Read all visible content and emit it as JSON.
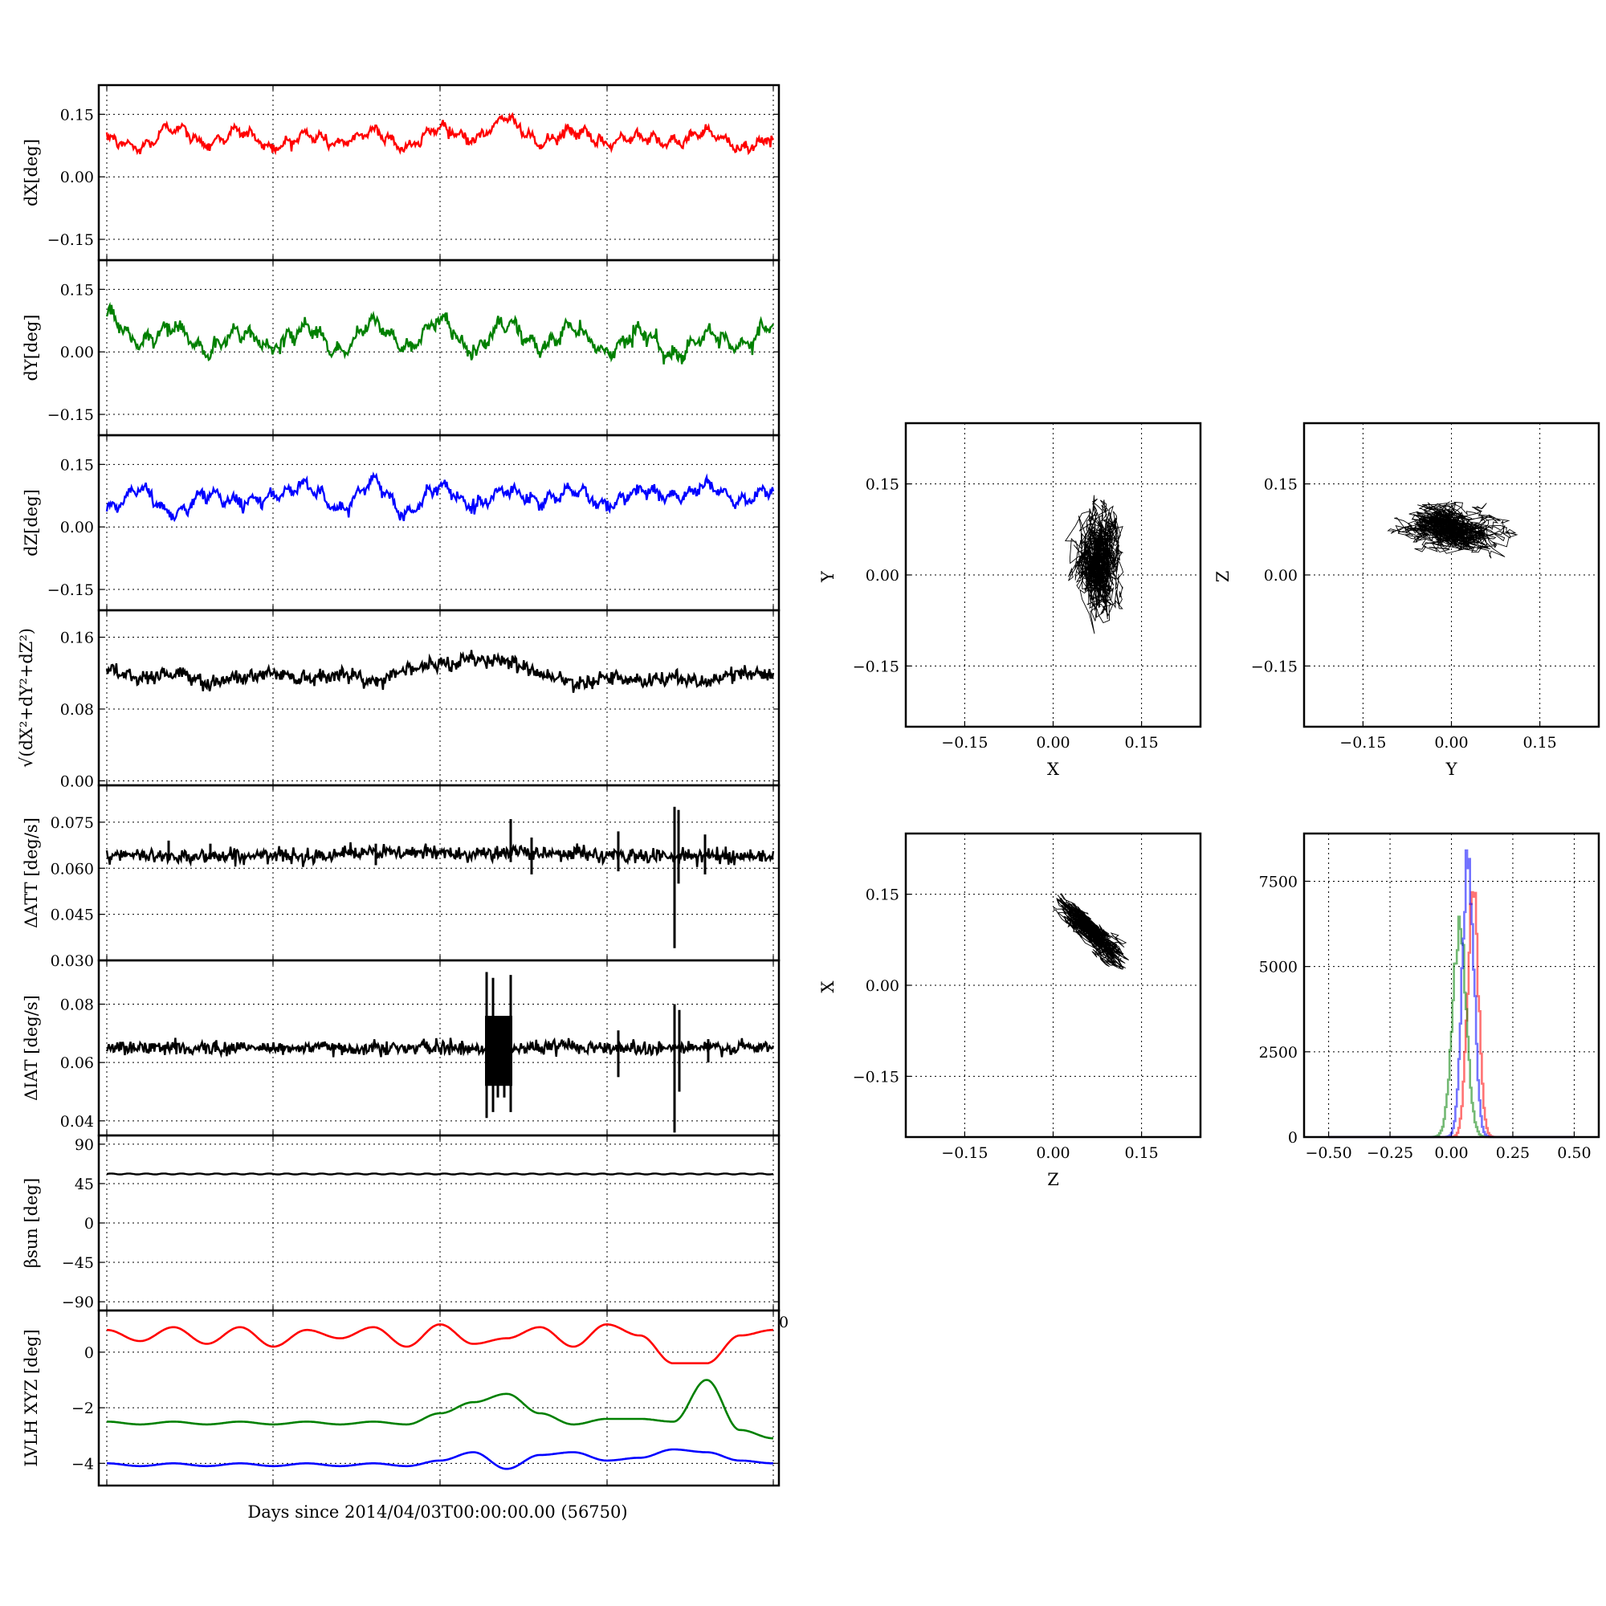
{
  "colors": {
    "red": "#ff0000",
    "green": "#008000",
    "blue": "#0000ff",
    "black": "#000000"
  },
  "left_xlabel": "Days since 2014/04/03T00:00:00.00 (56750)",
  "stray_tick_label": "0",
  "chart_data": [
    {
      "type": "line",
      "ylabel": "dX[deg]",
      "ylim": [
        -0.2,
        0.22
      ],
      "yticks": [
        "0.15",
        "0.00",
        "−0.15"
      ],
      "ytick_values": [
        0.15,
        0,
        -0.15
      ],
      "series": [
        {
          "color": "red",
          "base": 0.085,
          "amp": 0.025,
          "periods": 20,
          "noise": 0.006,
          "values": [
            0.09,
            0.07,
            0.12,
            0.08,
            0.11,
            0.07,
            0.1,
            0.08,
            0.11,
            0.07,
            0.12,
            0.09,
            0.14,
            0.08,
            0.11,
            0.08,
            0.1,
            0.08,
            0.11,
            0.07,
            0.09
          ]
        }
      ]
    },
    {
      "type": "line",
      "ylabel": "dY[deg]",
      "ylim": [
        -0.2,
        0.22
      ],
      "yticks": [
        "0.15",
        "0.00",
        "−0.15"
      ],
      "ytick_values": [
        0.15,
        0,
        -0.15
      ],
      "series": [
        {
          "color": "green",
          "base": 0.03,
          "amp": 0.035,
          "periods": 20,
          "noise": 0.008,
          "values": [
            0.09,
            0.02,
            0.06,
            0.0,
            0.05,
            0.01,
            0.06,
            0.0,
            0.07,
            0.01,
            0.08,
            0.0,
            0.07,
            0.01,
            0.06,
            0.0,
            0.05,
            -0.01,
            0.04,
            0.01,
            0.07
          ]
        }
      ]
    },
    {
      "type": "line",
      "ylabel": "dZ[deg]",
      "ylim": [
        -0.2,
        0.22
      ],
      "yticks": [
        "0.15",
        "0.00",
        "−0.15"
      ],
      "ytick_values": [
        0.15,
        0,
        -0.15
      ],
      "series": [
        {
          "color": "blue",
          "base": 0.065,
          "amp": 0.03,
          "periods": 20,
          "noise": 0.007,
          "values": [
            0.04,
            0.09,
            0.03,
            0.08,
            0.06,
            0.07,
            0.1,
            0.04,
            0.11,
            0.03,
            0.1,
            0.05,
            0.09,
            0.06,
            0.09,
            0.05,
            0.09,
            0.07,
            0.1,
            0.06,
            0.09
          ]
        }
      ]
    },
    {
      "type": "line",
      "ylabel": "√(dX²+dY²+dZ²)",
      "ylim": [
        -0.005,
        0.19
      ],
      "yticks": [
        "0.16",
        "0.08",
        "0.00"
      ],
      "ytick_values": [
        0.16,
        0.08,
        0
      ],
      "series": [
        {
          "color": "black",
          "base": 0.12,
          "amp": 0.006,
          "periods": 20,
          "noise": 0.004,
          "values": [
            0.125,
            0.115,
            0.12,
            0.11,
            0.115,
            0.12,
            0.115,
            0.12,
            0.11,
            0.125,
            0.13,
            0.135,
            0.135,
            0.12,
            0.11,
            0.115,
            0.11,
            0.115,
            0.11,
            0.12,
            0.12
          ]
        }
      ]
    },
    {
      "type": "line",
      "ylabel": "ΔATT [deg/s]",
      "ylim": [
        0.03,
        0.087
      ],
      "yticks": [
        "0.075",
        "0.060",
        "0.045",
        "0.030"
      ],
      "ytick_values": [
        0.075,
        0.06,
        0.045,
        0.03
      ],
      "series": [
        {
          "color": "black",
          "base": 0.064,
          "amp": 0.0,
          "periods": 20,
          "noise": 0.0012,
          "values": [
            0.064,
            0.064,
            0.064,
            0.064,
            0.064,
            0.064,
            0.064,
            0.065,
            0.065,
            0.065,
            0.065,
            0.065,
            0.065,
            0.065,
            0.065,
            0.064,
            0.064,
            0.064,
            0.064,
            0.064,
            0.064
          ]
        }
      ]
    },
    {
      "type": "line",
      "ylabel": "ΔIAT [deg/s]",
      "ylim": [
        0.035,
        0.095
      ],
      "yticks": [
        "0.08",
        "0.06",
        "0.04"
      ],
      "ytick_values": [
        0.08,
        0.06,
        0.04
      ],
      "series": [
        {
          "color": "black",
          "base": 0.065,
          "amp": 0.0,
          "periods": 20,
          "noise": 0.0012,
          "values": [
            0.065,
            0.065,
            0.065,
            0.065,
            0.065,
            0.065,
            0.065,
            0.065,
            0.065,
            0.065,
            0.065,
            0.065,
            0.065,
            0.065,
            0.066,
            0.065,
            0.065,
            0.065,
            0.065,
            0.065,
            0.065
          ]
        }
      ]
    },
    {
      "type": "line",
      "ylabel": "βsun [deg]",
      "ylim": [
        -100,
        100
      ],
      "yticks": [
        "90",
        "45",
        "0",
        "−45",
        "−90"
      ],
      "ytick_values": [
        90,
        45,
        0,
        -45,
        -90
      ],
      "series": [
        {
          "color": "black",
          "base": 56,
          "amp": 1.5,
          "periods": 20,
          "noise": 0.0,
          "values": [
            56,
            56,
            56,
            56,
            56,
            56,
            56,
            56,
            56,
            56,
            56,
            56,
            56,
            56,
            56,
            56,
            56,
            56,
            56,
            56,
            56
          ]
        }
      ]
    },
    {
      "type": "line",
      "ylabel": "LVLH XYZ [deg]",
      "ylim": [
        -4.8,
        1.5
      ],
      "yticks": [
        "0",
        "−2",
        "−4"
      ],
      "ytick_values": [
        0,
        -2,
        -4
      ],
      "series": [
        {
          "color": "red",
          "values": [
            0.8,
            0.4,
            0.9,
            0.3,
            0.9,
            0.2,
            0.8,
            0.5,
            0.9,
            0.2,
            1.0,
            0.3,
            0.5,
            0.9,
            0.2,
            1.0,
            0.6,
            -0.4,
            -0.4,
            0.6,
            0.8
          ]
        },
        {
          "color": "green",
          "values": [
            -2.5,
            -2.6,
            -2.5,
            -2.6,
            -2.5,
            -2.6,
            -2.5,
            -2.6,
            -2.5,
            -2.6,
            -2.2,
            -1.8,
            -1.5,
            -2.2,
            -2.6,
            -2.4,
            -2.4,
            -2.5,
            -1.0,
            -2.8,
            -3.1
          ]
        },
        {
          "color": "blue",
          "values": [
            -4.0,
            -4.1,
            -4.0,
            -4.1,
            -4.0,
            -4.1,
            -4.0,
            -4.1,
            -4.0,
            -4.1,
            -3.9,
            -3.6,
            -4.2,
            -3.7,
            -3.6,
            -3.9,
            -3.8,
            -3.5,
            -3.6,
            -3.9,
            -4.0
          ]
        }
      ]
    },
    {
      "type": "scatter",
      "xlabel": "X",
      "ylabel": "Y",
      "xlim": [
        -0.25,
        0.25
      ],
      "ylim": [
        -0.25,
        0.25
      ],
      "ticks": [
        "−0.15",
        "0.00",
        "0.15"
      ],
      "tick_values": [
        -0.15,
        0,
        0.15
      ],
      "cloud": {
        "cx": 0.078,
        "cy": 0.02,
        "sx": 0.018,
        "sy": 0.04,
        "rho": 0.0
      }
    },
    {
      "type": "scatter",
      "xlabel": "Y",
      "ylabel": "Z",
      "xlim": [
        -0.25,
        0.25
      ],
      "ylim": [
        -0.25,
        0.25
      ],
      "ticks": [
        "−0.15",
        "0.00",
        "0.15"
      ],
      "tick_values": [
        -0.15,
        0,
        0.15
      ],
      "cloud": {
        "cx": 0.005,
        "cy": 0.075,
        "sx": 0.035,
        "sy": 0.018,
        "rho": -0.35
      }
    },
    {
      "type": "scatter",
      "xlabel": "Z",
      "ylabel": "X",
      "xlim": [
        -0.25,
        0.25
      ],
      "ylim": [
        -0.25,
        0.25
      ],
      "ticks": [
        "−0.15",
        "0.00",
        "0.15"
      ],
      "tick_values": [
        -0.15,
        0,
        0.15
      ],
      "cloud": {
        "cx": 0.065,
        "cy": 0.088,
        "sx": 0.024,
        "sy": 0.022,
        "rho": -0.85
      }
    },
    {
      "type": "area",
      "xlim": [
        -0.6,
        0.6
      ],
      "ylim": [
        0,
        8900
      ],
      "xticks": [
        "−0.50",
        "−0.25",
        "0.00",
        "0.25",
        "0.50"
      ],
      "xtick_values": [
        -0.5,
        -0.25,
        0,
        0.25,
        0.5
      ],
      "yticks": [
        "7500",
        "5000",
        "2500",
        "0"
      ],
      "ytick_values": [
        7500,
        5000,
        2500,
        0
      ],
      "series": [
        {
          "color": "red",
          "center": 0.085,
          "sigma": 0.022,
          "peak": 7200
        },
        {
          "color": "green",
          "center": 0.03,
          "sigma": 0.028,
          "peak": 6200
        },
        {
          "color": "blue",
          "center": 0.065,
          "sigma": 0.023,
          "peak": 8400
        }
      ]
    }
  ]
}
